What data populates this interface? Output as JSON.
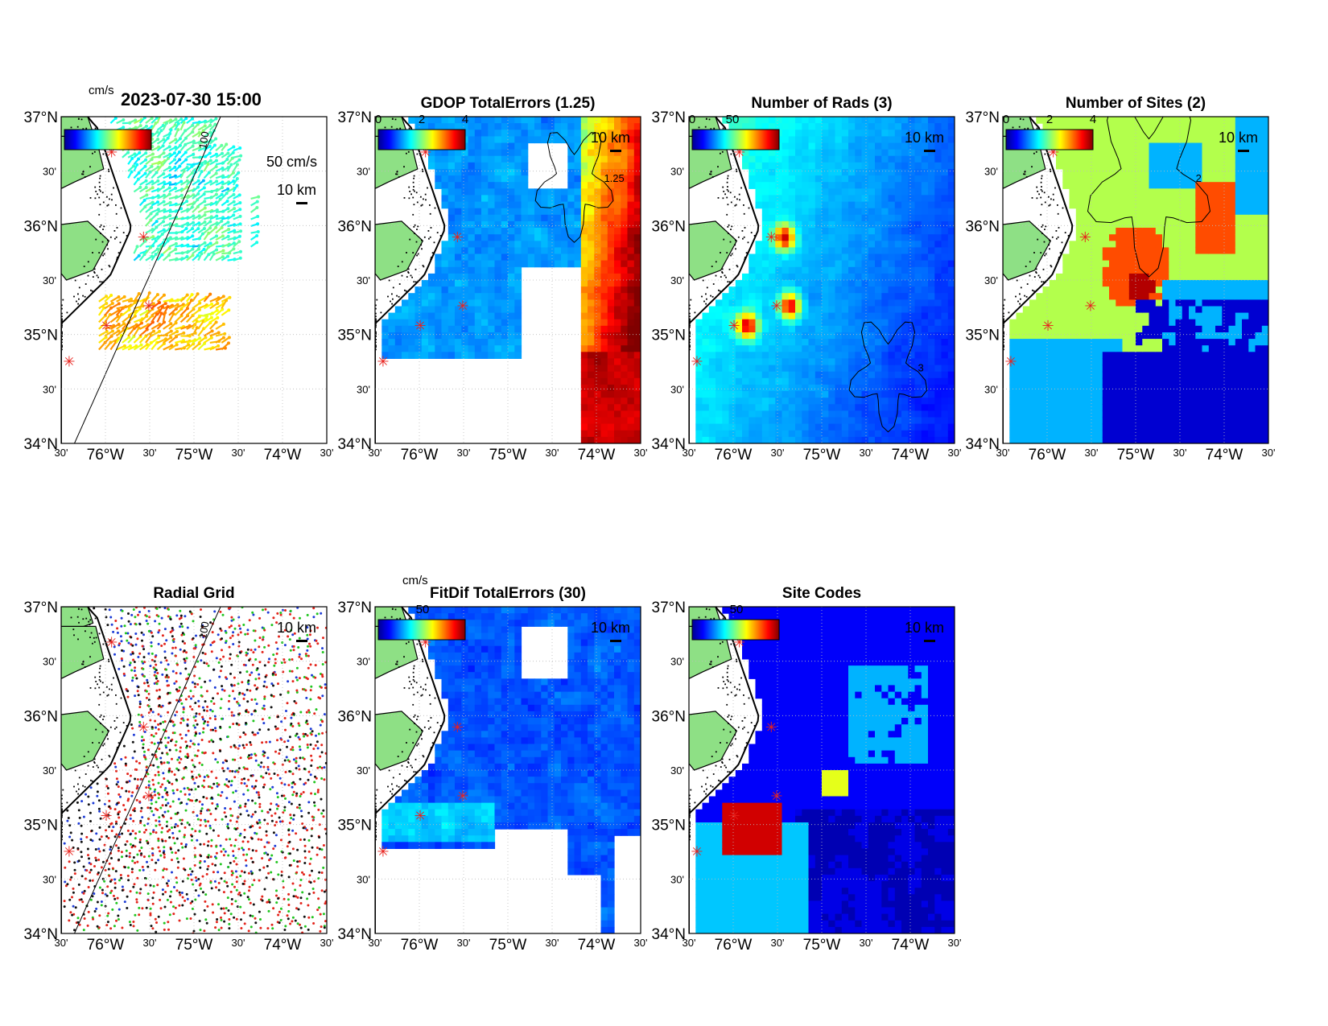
{
  "figure": {
    "timestamp": "2023-07-30 15:00",
    "colors": {
      "land": "#8ee085",
      "coast": "#000000",
      "site_marker": "#e8201b",
      "grid_dots": [
        "#1d3bd6",
        "#e3241b",
        "#20c51f",
        "#111111"
      ]
    },
    "axes": {
      "lat_major": [
        "37°N",
        "36°N",
        "35°N",
        "34°N"
      ],
      "lat_minor": [
        "30'",
        "30'",
        "30'"
      ],
      "lon_labels": [
        "30'",
        "76°W",
        "30'",
        "75°W",
        "30'",
        "74°W",
        "30'"
      ]
    },
    "panels": [
      {
        "id": "currents",
        "title": "",
        "colorbar": {
          "unit": "cm/s",
          "ticks": [],
          "colormap": "jet"
        },
        "annotations": [
          "50 cm/s",
          "10 km"
        ],
        "contour_label": "100",
        "field": "vectors"
      },
      {
        "id": "gdop",
        "title": "GDOP TotalErrors (1.25)",
        "colorbar": {
          "unit": "",
          "ticks": [
            "0",
            "2",
            "4"
          ],
          "colormap": "jet"
        },
        "annotations": [
          "10 km"
        ],
        "contour_label": "1.25",
        "field": "gdop"
      },
      {
        "id": "nrads",
        "title": "Number of Rads (3)",
        "colorbar": {
          "unit": "",
          "ticks": [
            "0",
            "50"
          ],
          "colormap": "jet"
        },
        "annotations": [
          "10 km"
        ],
        "contour_label": "3",
        "field": "nrads"
      },
      {
        "id": "nsites",
        "title": "Number of Sites (2)",
        "colorbar": {
          "unit": "",
          "ticks": [
            "0",
            "2",
            "4"
          ],
          "colormap": "jet"
        },
        "annotations": [
          "10 km"
        ],
        "contour_label": "2",
        "field": "nsites"
      },
      {
        "id": "radgrid",
        "title": "Radial Grid",
        "colorbar": null,
        "annotations": [
          "10 km"
        ],
        "contour_label": "100",
        "field": "radgrid"
      },
      {
        "id": "fitdif",
        "title": "FitDif TotalErrors (30)",
        "colorbar": {
          "unit": "cm/s",
          "ticks": [
            "50"
          ],
          "colormap": "jet"
        },
        "annotations": [
          "10 km"
        ],
        "contour_label": "",
        "field": "fitdif"
      },
      {
        "id": "sitecodes",
        "title": "Site Codes",
        "colorbar": {
          "unit": "",
          "ticks": [
            "50"
          ],
          "colormap": "jet"
        },
        "annotations": [
          "10 km"
        ],
        "contour_label": "",
        "field": "sitecodes"
      }
    ]
  }
}
